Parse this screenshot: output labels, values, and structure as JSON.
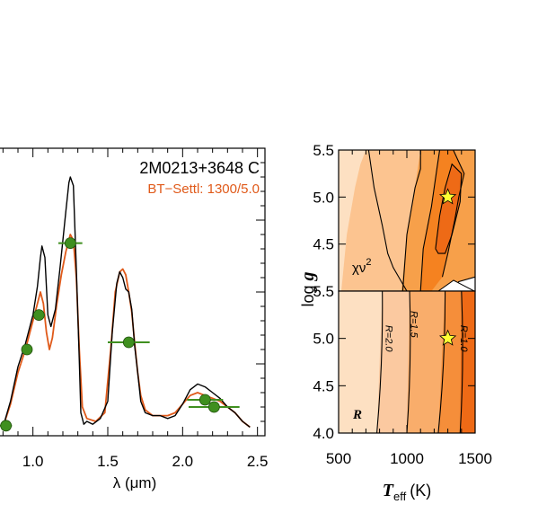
{
  "chart_data": [
    {
      "id": "spectrum",
      "type": "line",
      "annotation": "2M0213+3648 C",
      "model_label": "BT−Settl: 1300/5.0",
      "xlabel": "λ (μm)",
      "ylabel": "",
      "xlim": [
        0.78,
        2.55
      ],
      "ylim": [
        0.0,
        1.0
      ],
      "xticks": [
        1.0,
        1.5,
        2.0,
        2.5
      ],
      "xtick_labels": [
        "1.0",
        "1.5",
        "2.0",
        "2.5"
      ],
      "colors": {
        "observed": "#000000",
        "model": "#e05a1a",
        "photometry": "#3f8f1f",
        "photometry_edge": "#1f4f0a"
      },
      "series": [
        {
          "name": "2M0213+3648 C",
          "style": "observed",
          "x": [
            0.8,
            0.85,
            0.9,
            0.95,
            1.0,
            1.03,
            1.05,
            1.06,
            1.08,
            1.1,
            1.12,
            1.15,
            1.18,
            1.2,
            1.22,
            1.24,
            1.25,
            1.27,
            1.29,
            1.31,
            1.32,
            1.33,
            1.34,
            1.36,
            1.4,
            1.45,
            1.5,
            1.53,
            1.56,
            1.58,
            1.6,
            1.62,
            1.64,
            1.66,
            1.68,
            1.7,
            1.72,
            1.75,
            1.8,
            1.85,
            1.9,
            1.95,
            2.0,
            2.05,
            2.1,
            2.15,
            2.2,
            2.25,
            2.3,
            2.35,
            2.4,
            2.45
          ],
          "y": [
            0.03,
            0.12,
            0.24,
            0.32,
            0.42,
            0.52,
            0.62,
            0.66,
            0.62,
            0.42,
            0.38,
            0.44,
            0.58,
            0.68,
            0.78,
            0.88,
            0.9,
            0.87,
            0.58,
            0.26,
            0.08,
            0.06,
            0.04,
            0.05,
            0.04,
            0.06,
            0.12,
            0.36,
            0.53,
            0.57,
            0.55,
            0.51,
            0.5,
            0.44,
            0.31,
            0.22,
            0.12,
            0.08,
            0.07,
            0.07,
            0.06,
            0.07,
            0.11,
            0.16,
            0.18,
            0.17,
            0.15,
            0.13,
            0.1,
            0.08,
            0.05,
            0.03
          ]
        },
        {
          "name": "BT−Settl: 1300/5.0",
          "style": "model",
          "x": [
            0.8,
            0.85,
            0.9,
            0.95,
            1.0,
            1.03,
            1.05,
            1.07,
            1.09,
            1.11,
            1.13,
            1.16,
            1.19,
            1.22,
            1.25,
            1.27,
            1.29,
            1.31,
            1.33,
            1.36,
            1.42,
            1.48,
            1.52,
            1.55,
            1.58,
            1.6,
            1.62,
            1.64,
            1.66,
            1.68,
            1.7,
            1.72,
            1.75,
            1.8,
            1.85,
            1.9,
            1.95,
            2.0,
            2.05,
            2.1,
            2.15,
            2.2,
            2.25,
            2.3,
            2.35,
            2.4,
            2.45
          ],
          "y": [
            0.03,
            0.11,
            0.22,
            0.3,
            0.4,
            0.46,
            0.5,
            0.46,
            0.36,
            0.3,
            0.34,
            0.46,
            0.56,
            0.64,
            0.7,
            0.68,
            0.55,
            0.3,
            0.1,
            0.06,
            0.05,
            0.08,
            0.3,
            0.5,
            0.57,
            0.58,
            0.56,
            0.5,
            0.43,
            0.32,
            0.22,
            0.14,
            0.09,
            0.07,
            0.07,
            0.07,
            0.08,
            0.11,
            0.14,
            0.15,
            0.14,
            0.13,
            0.12,
            0.1,
            0.08,
            0.05,
            0.03
          ]
        }
      ],
      "photometry": [
        {
          "x": 0.82,
          "y": 0.035,
          "xerr": 0.04
        },
        {
          "x": 0.96,
          "y": 0.3,
          "xerr": 0.03
        },
        {
          "x": 1.04,
          "y": 0.42,
          "xerr": 0.04
        },
        {
          "x": 1.25,
          "y": 0.67,
          "xerr": 0.08
        },
        {
          "x": 1.64,
          "y": 0.325,
          "xerr": 0.14
        },
        {
          "x": 2.15,
          "y": 0.125,
          "xerr": 0.12
        },
        {
          "x": 2.21,
          "y": 0.1,
          "xerr": 0.17
        }
      ]
    },
    {
      "id": "chi2-contour",
      "type": "heatmap",
      "label": "χν",
      "label_superscript": "2",
      "ylabel": "log g",
      "xlim": [
        500,
        1500
      ],
      "ylim": [
        4.0,
        5.5
      ],
      "yticks": [
        4.5,
        5.0,
        5.5
      ],
      "ytick_labels": [
        "4.5",
        "5.0",
        "5.5"
      ],
      "best_fit": {
        "teff": 1300,
        "logg": 5.0
      },
      "star_color": "#ffff33",
      "fills": [
        "#fde0c2",
        "#fcc490",
        "#f7a04a",
        "#f58220",
        "#ee6a16",
        "#e85d10",
        "#ffffff"
      ],
      "regions": [
        {
          "fill": 1,
          "teff": [
            520,
            560,
            620,
            660,
            700,
            1500,
            1500
          ],
          "logg": [
            4.0,
            4.6,
            5.1,
            5.35,
            5.5,
            5.5,
            4.0
          ]
        },
        {
          "fill": 2,
          "teff": [
            960,
            1000,
            1060,
            1100,
            1500,
            1500
          ],
          "logg": [
            4.0,
            4.6,
            5.1,
            5.5,
            5.5,
            4.0
          ]
        },
        {
          "fill": 3,
          "teff": [
            1100,
            1120,
            1180,
            1220,
            1240,
            1340,
            1420,
            1380,
            1350,
            1300,
            1260,
            1180,
            1150
          ],
          "logg": [
            4.0,
            4.45,
            4.9,
            5.3,
            5.5,
            5.5,
            5.25,
            5.0,
            4.75,
            4.4,
            4.15,
            4.0,
            4.0
          ]
        },
        {
          "fill": 4,
          "teff": [
            1210,
            1240,
            1280,
            1330,
            1400,
            1390,
            1330,
            1280,
            1230
          ],
          "logg": [
            4.45,
            4.8,
            5.1,
            5.35,
            5.25,
            4.95,
            4.6,
            4.4,
            4.4
          ]
        },
        {
          "fill": 6,
          "teff": [
            1320,
            1380,
            1500,
            1500,
            1400
          ],
          "logg": [
            4.0,
            4.1,
            4.15,
            4.0,
            4.0
          ]
        }
      ],
      "contours": [
        {
          "teff": [
            720,
            760,
            820,
            860,
            900,
            960,
            1000
          ],
          "logg": [
            5.5,
            5.1,
            4.7,
            4.4,
            4.25,
            4.1,
            4.0
          ]
        },
        {
          "teff": [
            970,
            1000,
            1060,
            1100,
            1100
          ],
          "logg": [
            4.0,
            4.6,
            5.1,
            5.3,
            5.5
          ]
        },
        {
          "teff": [
            1100,
            1120,
            1180,
            1220,
            1240
          ],
          "logg": [
            4.0,
            4.45,
            4.9,
            5.3,
            5.5
          ]
        },
        {
          "teff": [
            1210,
            1240,
            1280,
            1330,
            1400,
            1390,
            1330,
            1280,
            1230,
            1210
          ],
          "logg": [
            4.45,
            4.8,
            5.1,
            5.35,
            5.25,
            4.95,
            4.6,
            4.4,
            4.4,
            4.45
          ]
        },
        {
          "teff": [
            1340,
            1420,
            1380,
            1350,
            1300,
            1260
          ],
          "logg": [
            5.5,
            5.25,
            5.0,
            4.75,
            4.4,
            4.15
          ]
        },
        {
          "teff": [
            1320,
            1380,
            1500
          ],
          "logg": [
            4.0,
            4.1,
            4.15
          ]
        }
      ]
    },
    {
      "id": "R-contour",
      "type": "heatmap",
      "label": "R",
      "xlabel_main": "T",
      "xlabel_sub": "eff",
      "xlabel_unit": "(K)",
      "xlim": [
        500,
        1500
      ],
      "ylim": [
        4.0,
        5.5
      ],
      "xticks": [
        500,
        1000,
        1500
      ],
      "xtick_labels": [
        "500",
        "1000",
        "1500"
      ],
      "yticks": [
        4.0,
        4.5,
        5.0,
        5.5
      ],
      "ytick_labels": [
        "4.0",
        "4.5",
        "5.0",
        "5.5"
      ],
      "best_fit": {
        "teff": 1300,
        "logg": 5.0
      },
      "star_color": "#ffff33",
      "fills": [
        "#fde0c2",
        "#fbc9a0",
        "#f9ad6b",
        "#f58e3a",
        "#ee6a16"
      ],
      "contour_labels": [
        "R=2.0",
        "R=1.5",
        "R=1.0"
      ],
      "bands": [
        {
          "fill": 1,
          "teff_top": 820,
          "teff_bottom": 780
        },
        {
          "fill": 2,
          "teff_top": 1020,
          "teff_bottom": 1000
        },
        {
          "fill": 3,
          "teff_top": 1280,
          "teff_bottom": 1230
        },
        {
          "fill": 4,
          "teff_top": 1400,
          "teff_bottom": 1390
        }
      ],
      "label_positions": [
        {
          "text_index": 0,
          "teff": 845,
          "logg": 5.0
        },
        {
          "text_index": 1,
          "teff": 1030,
          "logg": 5.15
        },
        {
          "text_index": 2,
          "teff": 1395,
          "logg": 5.0
        }
      ]
    }
  ]
}
